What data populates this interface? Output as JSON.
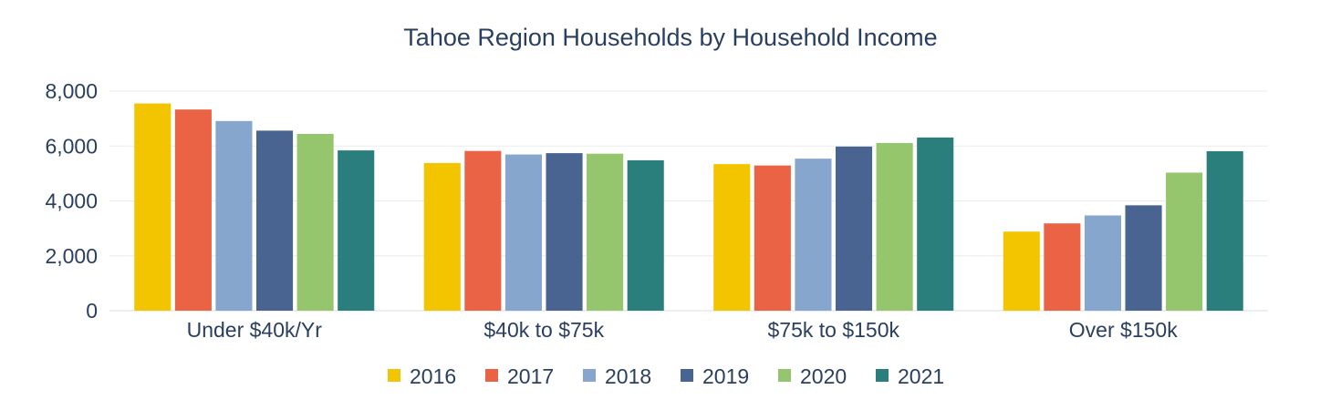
{
  "chart_data": {
    "type": "bar",
    "title": "Tahoe Region Households by Household Income",
    "xlabel": "",
    "ylabel": "",
    "categories": [
      "Under $40k/Yr",
      "$40k to $75k",
      "$75k to $150k",
      "Over $150k"
    ],
    "ylim": [
      0,
      8000
    ],
    "yticks": [
      0,
      2000,
      4000,
      6000,
      8000
    ],
    "ytick_labels": [
      "0",
      "2,000",
      "4,000",
      "6,000",
      "8,000"
    ],
    "grid": true,
    "legend_position": "bottom",
    "series": [
      {
        "name": "2016",
        "color": "#f2c500",
        "values": [
          7550,
          5380,
          5340,
          2880
        ]
      },
      {
        "name": "2017",
        "color": "#e96344",
        "values": [
          7330,
          5820,
          5290,
          3180
        ]
      },
      {
        "name": "2018",
        "color": "#87a6cd",
        "values": [
          6910,
          5690,
          5540,
          3470
        ]
      },
      {
        "name": "2019",
        "color": "#4a6491",
        "values": [
          6560,
          5740,
          5980,
          3840
        ]
      },
      {
        "name": "2020",
        "color": "#95c56c",
        "values": [
          6440,
          5720,
          6110,
          5030
        ]
      },
      {
        "name": "2021",
        "color": "#2a7f7d",
        "values": [
          5840,
          5480,
          6310,
          5810
        ]
      }
    ]
  }
}
